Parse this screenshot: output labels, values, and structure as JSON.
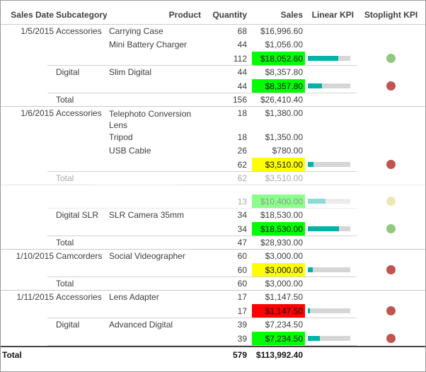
{
  "report": {
    "columns": [
      {
        "key": "date",
        "label": "Sales Date"
      },
      {
        "key": "sub",
        "label": "Subcategory"
      },
      {
        "key": "prod",
        "label": "Product"
      },
      {
        "key": "qty",
        "label": "Quantity"
      },
      {
        "key": "sales",
        "label": "Sales"
      },
      {
        "key": "kpi",
        "label": "Linear KPI"
      },
      {
        "key": "light",
        "label": "Stoplight KPI"
      }
    ],
    "colors": {
      "sales_green": "#00ff00",
      "sales_yellow": "#ffff00",
      "sales_red": "#ff0000",
      "bar_fill": "#00b3a6",
      "bar_track": "#d6d6d6",
      "light_green": "#90c97f",
      "light_red": "#c0554f",
      "light_yellow": "#ddca5e"
    },
    "kpi_scale_max": 25000,
    "rows": [
      {
        "type": "data",
        "date": "1/5/2015",
        "subcategory": "Accessories",
        "product": "Carrying Case",
        "qty": "68",
        "sales": "$16,996.60"
      },
      {
        "type": "data",
        "product": "Mini Battery Charger",
        "qty": "44",
        "sales": "$1,056.00"
      },
      {
        "type": "subtotal",
        "qty": "112",
        "sales": "$18,052.60",
        "sales_bg": "green",
        "kpi": 0.72,
        "light": "green"
      },
      {
        "type": "data",
        "subcategory": "Digital",
        "product": "Slim Digital",
        "qty": "44",
        "sales": "$8,357.80"
      },
      {
        "type": "subtotal",
        "qty": "44",
        "sales": "$8,357.80",
        "sales_bg": "green",
        "kpi": 0.33,
        "light": "red"
      },
      {
        "type": "group-total",
        "label": "Total",
        "qty": "156",
        "sales": "$26,410.40"
      },
      {
        "type": "data",
        "date": "1/6/2015",
        "subcategory": "Accessories",
        "product": "Telephoto Conversion Lens",
        "qty": "18",
        "sales": "$1,380.00",
        "two_line": true
      },
      {
        "type": "data",
        "product": "Tripod",
        "qty": "18",
        "sales": "$1,350.00"
      },
      {
        "type": "data",
        "product": "USB Cable",
        "qty": "26",
        "sales": "$780.00"
      },
      {
        "type": "subtotal",
        "qty": "62",
        "sales": "$3,510.00",
        "sales_bg": "yellow",
        "kpi": 0.14,
        "light": "red"
      },
      {
        "type": "group-total",
        "label": "Total",
        "qty": "62",
        "sales": "$3,510.00",
        "faded": true
      },
      {
        "type": "gap"
      },
      {
        "type": "subtotal",
        "qty": "13",
        "sales": "$10,400.00",
        "sales_bg": "green",
        "kpi": 0.42,
        "light": "yellow",
        "faded": true
      },
      {
        "type": "data",
        "subcategory": "Digital SLR",
        "product": "SLR Camera 35mm",
        "qty": "34",
        "sales": "$18,530.00"
      },
      {
        "type": "subtotal",
        "qty": "34",
        "sales": "$18,530.00",
        "sales_bg": "green",
        "kpi": 0.74,
        "light": "green"
      },
      {
        "type": "group-total",
        "label": "Total",
        "qty": "47",
        "sales": "$28,930.00"
      },
      {
        "type": "data",
        "date": "1/10/2015",
        "subcategory": "Camcorders",
        "product": "Social Videographer",
        "qty": "60",
        "sales": "$3,000.00"
      },
      {
        "type": "subtotal",
        "qty": "60",
        "sales": "$3,000.00",
        "sales_bg": "yellow",
        "kpi": 0.12,
        "light": "red"
      },
      {
        "type": "group-total",
        "label": "Total",
        "qty": "60",
        "sales": "$3,000.00"
      },
      {
        "type": "data",
        "date": "1/11/2015",
        "subcategory": "Accessories",
        "product": "Lens Adapter",
        "qty": "17",
        "sales": "$1,147.50"
      },
      {
        "type": "subtotal",
        "qty": "17",
        "sales": "$1,147.50",
        "sales_bg": "red",
        "kpi": 0.05,
        "light": "red"
      },
      {
        "type": "data",
        "subcategory": "Digital",
        "product": "Advanced Digital",
        "qty": "39",
        "sales": "$7,234.50"
      },
      {
        "type": "subtotal",
        "qty": "39",
        "sales": "$7,234.50",
        "sales_bg": "green",
        "kpi": 0.29,
        "light": "red"
      },
      {
        "type": "grand-total",
        "label": "Total",
        "qty": "579",
        "sales": "$113,992.40"
      }
    ]
  }
}
